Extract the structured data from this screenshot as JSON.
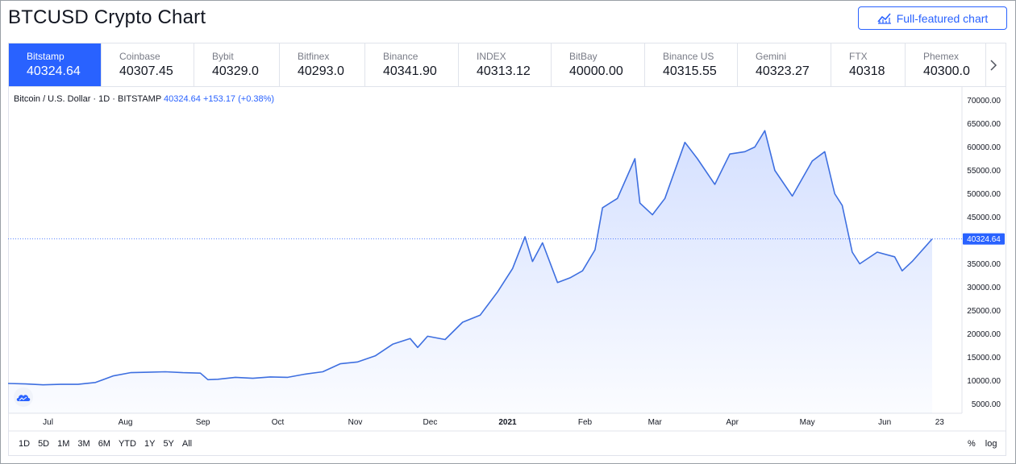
{
  "header": {
    "title": "BTCUSD Crypto Chart",
    "full_button_label": "Full-featured chart"
  },
  "exchanges": [
    {
      "name": "Bitstamp",
      "price": "40324.64",
      "active": true
    },
    {
      "name": "Coinbase",
      "price": "40307.45"
    },
    {
      "name": "Bybit",
      "price": "40329.0"
    },
    {
      "name": "Bitfinex",
      "price": "40293.0"
    },
    {
      "name": "Binance",
      "price": "40341.90"
    },
    {
      "name": "INDEX",
      "price": "40313.12"
    },
    {
      "name": "BitBay",
      "price": "40000.00"
    },
    {
      "name": "Binance US",
      "price": "40315.55"
    },
    {
      "name": "Gemini",
      "price": "40323.27"
    },
    {
      "name": "FTX",
      "price": "40318"
    },
    {
      "name": "Phemex",
      "price": "40300.0"
    }
  ],
  "legend": {
    "symbol": "Bitcoin / U.S. Dollar · 1D · BITSTAMP",
    "last": "40324.64",
    "change": "+153.17 (+0.38%)"
  },
  "timeframes": [
    "1D",
    "5D",
    "1M",
    "3M",
    "6M",
    "YTD",
    "1Y",
    "5Y",
    "All"
  ],
  "scale_options": {
    "percent": "%",
    "log": "log"
  },
  "colors": {
    "line": "#3e6fe0",
    "accent": "#2962ff",
    "price_tag": "#2962ff"
  },
  "chart_data": {
    "type": "area",
    "title": "Bitcoin / U.S. Dollar · 1D · BITSTAMP",
    "ylim": [
      3000,
      72000
    ],
    "y_ticks": [
      "70000.00",
      "65000.00",
      "60000.00",
      "55000.00",
      "50000.00",
      "45000.00",
      "40000.00",
      "35000.00",
      "30000.00",
      "25000.00",
      "20000.00",
      "15000.00",
      "10000.00",
      "5000.00"
    ],
    "y_tick_values": [
      70000,
      65000,
      60000,
      55000,
      50000,
      45000,
      40000,
      35000,
      30000,
      25000,
      20000,
      15000,
      10000,
      5000
    ],
    "x_ticks": [
      "Jul",
      "Aug",
      "Sep",
      "Oct",
      "Nov",
      "Dec",
      "2021",
      "Feb",
      "Mar",
      "Apr",
      "May",
      "Jun",
      "23"
    ],
    "x_tick_dates": [
      "2020-07-01",
      "2020-08-01",
      "2020-09-01",
      "2020-10-01",
      "2020-11-01",
      "2020-12-01",
      "2021-01-01",
      "2021-02-01",
      "2021-03-01",
      "2021-04-01",
      "2021-05-01",
      "2021-06-01",
      "2021-06-23"
    ],
    "last_value": 40324.64,
    "last_label": "40324.64",
    "x": [
      "2020-06-15",
      "2020-06-22",
      "2020-06-29",
      "2020-07-06",
      "2020-07-13",
      "2020-07-20",
      "2020-07-27",
      "2020-08-03",
      "2020-08-10",
      "2020-08-17",
      "2020-08-24",
      "2020-08-31",
      "2020-09-03",
      "2020-09-07",
      "2020-09-14",
      "2020-09-21",
      "2020-09-28",
      "2020-10-05",
      "2020-10-12",
      "2020-10-19",
      "2020-10-26",
      "2020-11-02",
      "2020-11-09",
      "2020-11-16",
      "2020-11-23",
      "2020-11-26",
      "2020-11-30",
      "2020-12-07",
      "2020-12-14",
      "2020-12-21",
      "2020-12-28",
      "2021-01-03",
      "2021-01-08",
      "2021-01-11",
      "2021-01-15",
      "2021-01-21",
      "2021-01-26",
      "2021-01-31",
      "2021-02-05",
      "2021-02-08",
      "2021-02-14",
      "2021-02-21",
      "2021-02-23",
      "2021-02-28",
      "2021-03-05",
      "2021-03-13",
      "2021-03-18",
      "2021-03-25",
      "2021-03-31",
      "2021-04-06",
      "2021-04-10",
      "2021-04-14",
      "2021-04-18",
      "2021-04-25",
      "2021-05-03",
      "2021-05-08",
      "2021-05-12",
      "2021-05-15",
      "2021-05-19",
      "2021-05-22",
      "2021-05-29",
      "2021-06-05",
      "2021-06-08",
      "2021-06-12",
      "2021-06-17",
      "2021-06-20"
    ],
    "y": [
      9400,
      9300,
      9100,
      9200,
      9200,
      9600,
      11000,
      11700,
      11800,
      11900,
      11700,
      11600,
      10200,
      10300,
      10700,
      10500,
      10800,
      10700,
      11400,
      11900,
      13600,
      14000,
      15300,
      17800,
      19000,
      17100,
      19500,
      18800,
      22500,
      24000,
      29000,
      34000,
      40800,
      35500,
      39500,
      31000,
      32000,
      33500,
      38000,
      47000,
      49000,
      57500,
      48000,
      45500,
      49000,
      61000,
      57500,
      52000,
      58500,
      59000,
      60000,
      63500,
      55000,
      49500,
      57000,
      59000,
      50000,
      47500,
      37500,
      35000,
      37500,
      36500,
      33500,
      35500,
      38500,
      40324.64
    ]
  }
}
